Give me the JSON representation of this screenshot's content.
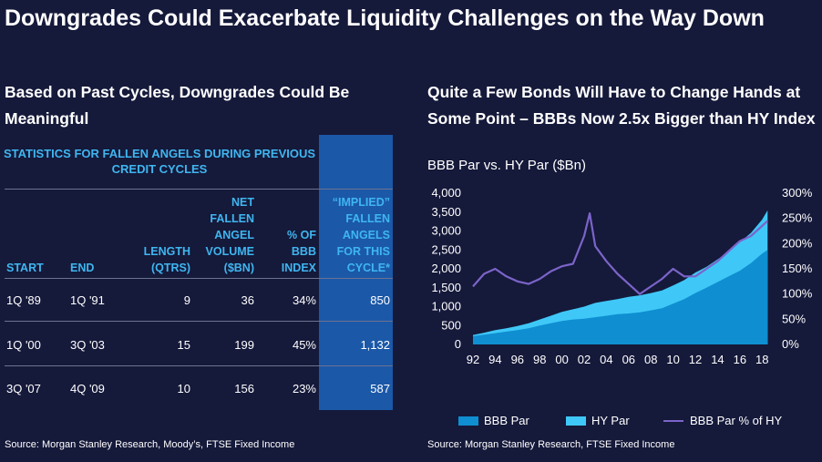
{
  "title": "Downgrades Could Exacerbate Liquidity Challenges on the Way Down",
  "left": {
    "heading": "Based on Past Cycles, Downgrades Could Be Meaningful",
    "table_title": "STATISTICS FOR FALLEN ANGELS DURING PREVIOUS CREDIT CYCLES",
    "headers": {
      "start": "START",
      "end": "END",
      "length": "LENGTH (QTRS)",
      "volume": "NET FALLEN ANGEL VOLUME ($BN)",
      "pct": "% OF BBB INDEX",
      "implied": "“IMPLIED” FALLEN ANGELS FOR THIS CYCLE*"
    },
    "rows": [
      {
        "start": "1Q '89",
        "end": "1Q '91",
        "length": "9",
        "volume": "36",
        "pct": "34%",
        "implied": "850"
      },
      {
        "start": "1Q '00",
        "end": "3Q '03",
        "length": "15",
        "volume": "199",
        "pct": "45%",
        "implied": "1,132"
      },
      {
        "start": "3Q '07",
        "end": "4Q '09",
        "length": "10",
        "volume": "156",
        "pct": "23%",
        "implied": "587"
      }
    ],
    "source": "Source: Morgan Stanley Research, Moody’s, FTSE Fixed Income"
  },
  "right": {
    "heading": "Quite a Few Bonds Will Have to Change Hands at Some Point – BBBs Now 2.5x Bigger than HY Index",
    "subtitle": "BBB Par vs. HY Par ($Bn)",
    "source": "Source: Morgan Stanley Research, FTSE Fixed Income"
  },
  "colors": {
    "bbb": "#0f8ed1",
    "hy": "#3fc8f7",
    "pct": "#7b64c9",
    "highlight": "#1b58a8",
    "header": "#3fb6f0",
    "background": "#15193a"
  },
  "chart_data": {
    "type": "area",
    "x": [
      1992,
      1993,
      1994,
      1995,
      1996,
      1997,
      1998,
      1999,
      2000,
      2001,
      2002,
      2002.5,
      2003,
      2004,
      2005,
      2006,
      2007,
      2008,
      2009,
      2010,
      2011,
      2012,
      2013,
      2014,
      2015,
      2016,
      2017,
      2018,
      2018.5
    ],
    "xticks": [
      "92",
      "94",
      "96",
      "98",
      "00",
      "02",
      "04",
      "06",
      "08",
      "10",
      "12",
      "14",
      "16",
      "18"
    ],
    "xtick_years": [
      1992,
      1994,
      1996,
      1998,
      2000,
      2002,
      2004,
      2006,
      2008,
      2010,
      2012,
      2014,
      2016,
      2018
    ],
    "xlim": [
      1992,
      2018.8
    ],
    "ylim_left": [
      0,
      4000
    ],
    "ylim_right": [
      0,
      300
    ],
    "yticks_left": [
      "0",
      "500",
      "1,000",
      "1,500",
      "2,000",
      "2,500",
      "3,000",
      "3,500",
      "4,000"
    ],
    "yticks_left_values": [
      0,
      500,
      1000,
      1500,
      2000,
      2500,
      3000,
      3500,
      4000
    ],
    "yticks_right": [
      "0%",
      "50%",
      "100%",
      "150%",
      "200%",
      "250%",
      "300%"
    ],
    "yticks_right_values": [
      0,
      50,
      100,
      150,
      200,
      250,
      300
    ],
    "series": [
      {
        "name": "BBB Par",
        "type": "area",
        "axis": "left",
        "values": [
          220,
          260,
          300,
          340,
          380,
          430,
          500,
          560,
          620,
          660,
          680,
          700,
          720,
          760,
          800,
          820,
          850,
          900,
          960,
          1080,
          1200,
          1360,
          1500,
          1650,
          1800,
          1950,
          2150,
          2400,
          2500
        ]
      },
      {
        "name": "HY Par",
        "type": "area",
        "axis": "left",
        "values": [
          250,
          310,
          380,
          430,
          490,
          560,
          660,
          760,
          860,
          930,
          1000,
          1050,
          1100,
          1150,
          1200,
          1260,
          1300,
          1360,
          1430,
          1560,
          1700,
          1900,
          2050,
          2250,
          2450,
          2700,
          2950,
          3300,
          3550
        ]
      },
      {
        "name": "BBB Par % of HY",
        "type": "line",
        "axis": "right",
        "values": [
          115,
          140,
          150,
          135,
          125,
          120,
          130,
          145,
          155,
          160,
          215,
          260,
          195,
          165,
          140,
          120,
          100,
          115,
          130,
          150,
          135,
          135,
          150,
          165,
          185,
          205,
          215,
          235,
          245
        ]
      }
    ]
  }
}
